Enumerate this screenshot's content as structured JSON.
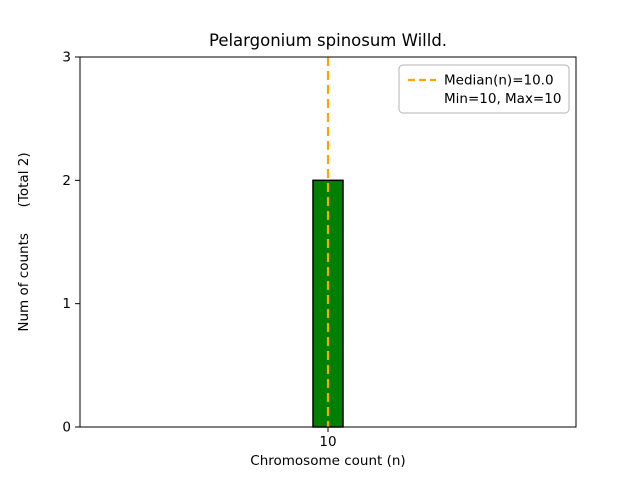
{
  "chart_data": {
    "type": "bar",
    "title": "Pelargonium spinosum Willd.",
    "xlabel": "Chromosome count (n)",
    "ylabel": "Num of counts      (Total 2)",
    "categories": [
      10
    ],
    "values": [
      2
    ],
    "xticks": [
      "10"
    ],
    "yticks": [
      0,
      1,
      2,
      3
    ],
    "xlim": [
      9.5,
      10.5
    ],
    "ylim": [
      0,
      3
    ],
    "grid": false,
    "bar_color": "#008000",
    "bar_edge_color": "#000000",
    "median_line": {
      "value": 10.0,
      "color": "#FFA500",
      "style": "dashed"
    },
    "legend": {
      "position": "upper-right",
      "items": [
        {
          "sample": "orange-dashed-line",
          "label": "Median(n)=10.0"
        },
        {
          "sample": "none",
          "label": "Min=10, Max=10"
        }
      ]
    }
  }
}
